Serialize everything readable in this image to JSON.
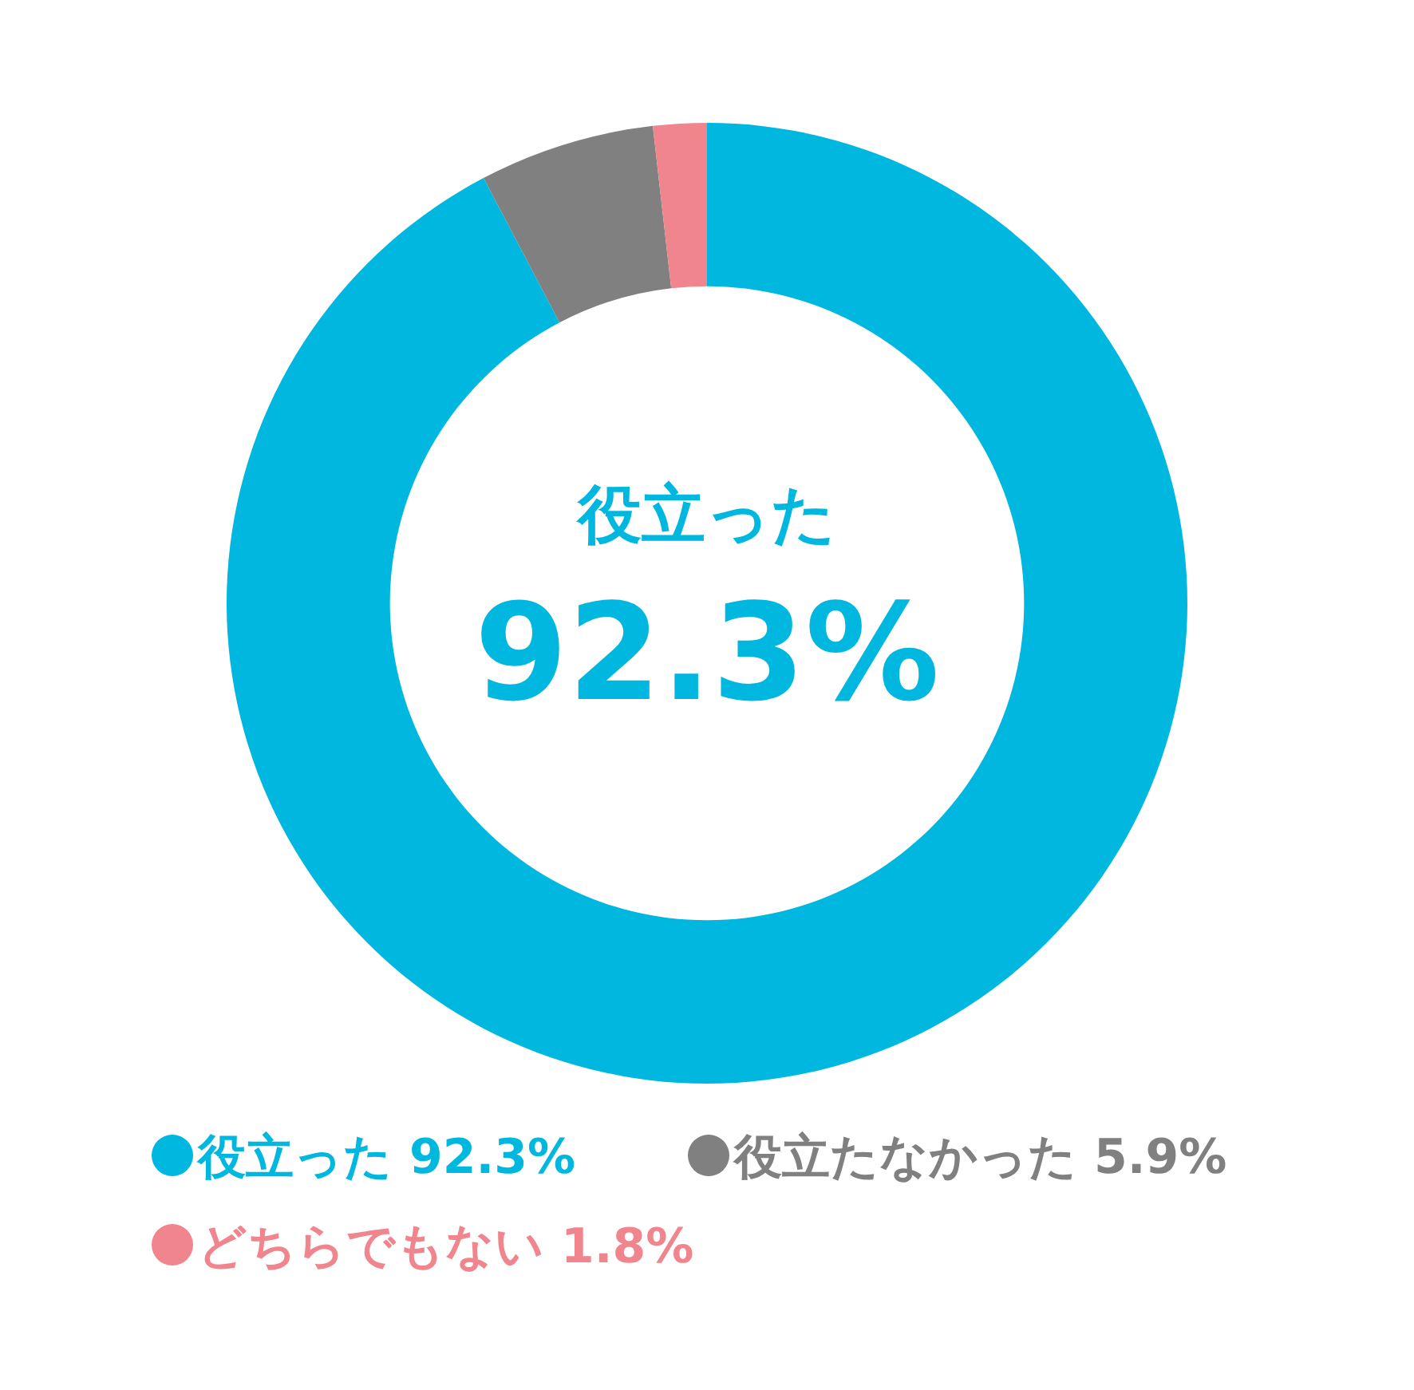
{
  "chart_data": {
    "type": "donut",
    "categories": [
      "役立った",
      "役立たなかった",
      "どちらでもない"
    ],
    "values": [
      92.3,
      5.9,
      1.8
    ],
    "colors": [
      "#00b8df",
      "#808080",
      "#f0858e"
    ],
    "value_labels": [
      "92.3%",
      "5.9%",
      "1.8%"
    ],
    "annotations": [
      "役立った",
      "92.3%"
    ],
    "legend": "bottom"
  }
}
